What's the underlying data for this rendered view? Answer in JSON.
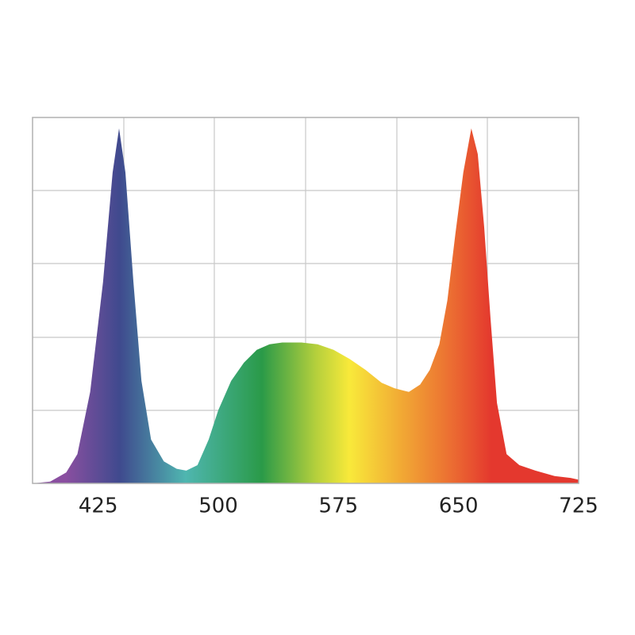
{
  "chart_data": {
    "type": "area",
    "x": [
      384,
      395,
      405,
      412,
      420,
      428,
      434,
      438,
      442,
      447,
      452,
      458,
      466,
      474,
      480,
      487,
      494,
      500,
      508,
      516,
      524,
      532,
      540,
      552,
      562,
      572,
      582,
      592,
      602,
      610,
      619,
      626,
      632,
      638,
      643,
      648,
      653,
      658,
      662,
      666,
      670,
      674,
      680,
      688,
      698,
      710,
      720,
      725
    ],
    "values": [
      0,
      0.5,
      3,
      8,
      25,
      55,
      85,
      97,
      85,
      55,
      28,
      12,
      6,
      4,
      3.5,
      5,
      12,
      20,
      28,
      33,
      36.5,
      38,
      38.5,
      38.5,
      38,
      36.5,
      34,
      31,
      27.5,
      26,
      25,
      27,
      31,
      38,
      50,
      68,
      85,
      97,
      90,
      70,
      45,
      22,
      8,
      5,
      3.5,
      2,
      1.5,
      1
    ],
    "xlim": [
      384,
      725
    ],
    "xticks": [
      425,
      500,
      575,
      650,
      725
    ],
    "ylim": [
      0,
      100
    ]
  }
}
